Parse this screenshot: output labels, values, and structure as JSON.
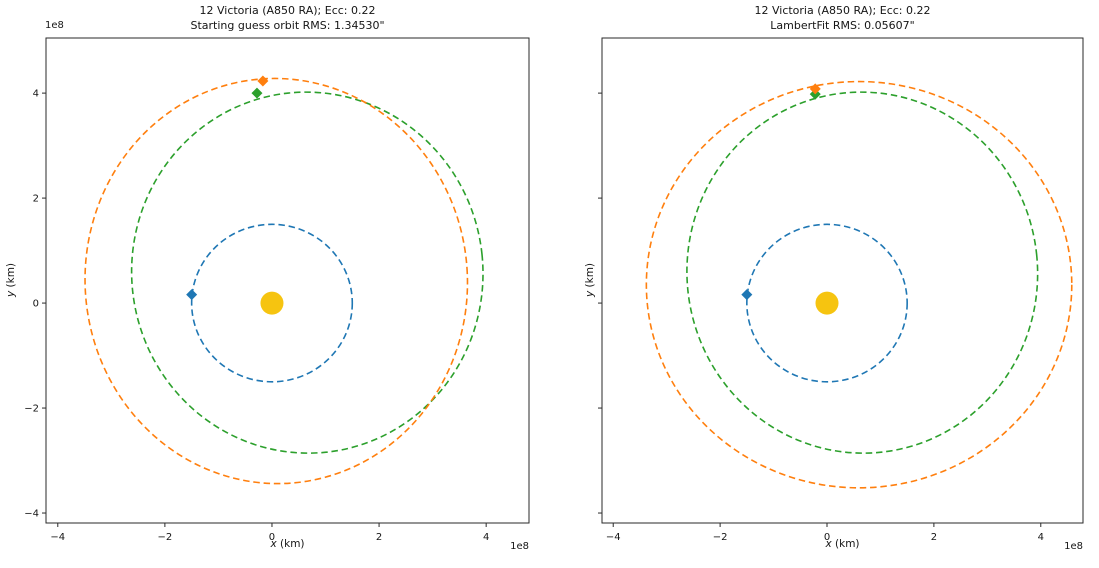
{
  "figure": {
    "background": "#ffffff",
    "text_color": "#151515",
    "spine_color": "#2a2a2a"
  },
  "colors": {
    "earth_orbit_blue": "#1f77b4",
    "fit_orbit_orange": "#ff7f0e",
    "true_orbit_green": "#2ca02c",
    "sun_gold": "#f6c410"
  },
  "chart_data": [
    {
      "type": "line",
      "title_line1": "12 Victoria (A850 RA); Ecc: 0.22",
      "title_line2": "Starting guess orbit RMS: 1.34530\"",
      "xlabel_var": "x",
      "xlabel_unit": " (km)",
      "ylabel_var": "y",
      "ylabel_unit": " (km)",
      "y_offset_text": "1e8",
      "x_offset_text": "1e8",
      "xlim": [
        -4.22,
        4.8
      ],
      "ylim": [
        -4.19,
        5.05
      ],
      "x_ticks": [
        -4,
        -2,
        0,
        2,
        4
      ],
      "y_ticks": [
        -4,
        -2,
        0,
        2,
        4
      ],
      "show_y_tick_labels": true,
      "show_y_offset": true,
      "grid": false,
      "legend": "none",
      "units": "1e8 km",
      "orbits": [
        {
          "name": "earth-orbit",
          "color": "#1f77b4",
          "cx": 0,
          "cy": 0,
          "rx": 1.5,
          "ry": 1.5,
          "rot": 0
        },
        {
          "name": "victoria-true-orbit",
          "color": "#2ca02c",
          "cx": 0.66,
          "cy": 0.58,
          "rx": 3.28,
          "ry": 3.44,
          "rot": -6
        },
        {
          "name": "victoria-guess-orbit",
          "color": "#ff7f0e",
          "cx": 0.08,
          "cy": 0.42,
          "rx": 3.57,
          "ry": 3.86,
          "rot": -4
        }
      ],
      "markers": [
        {
          "name": "earth-position-marker",
          "color": "#1f77b4",
          "x": -1.5,
          "y": 0.16
        },
        {
          "name": "victoria-observed-marker",
          "color": "#2ca02c",
          "x": -0.28,
          "y": 4.0
        },
        {
          "name": "victoria-guess-marker",
          "color": "#ff7f0e",
          "x": -0.17,
          "y": 4.23
        }
      ],
      "sun": {
        "x": 0,
        "y": 0,
        "color": "#f6c410"
      }
    },
    {
      "type": "line",
      "title_line1": "12 Victoria (A850 RA); Ecc: 0.22",
      "title_line2": "LambertFit RMS: 0.05607\"",
      "xlabel_var": "x",
      "xlabel_unit": " (km)",
      "ylabel_var": "y",
      "ylabel_unit": " (km)",
      "x_offset_text": "1e8",
      "xlim": [
        -4.21,
        4.79
      ],
      "ylim": [
        -4.19,
        5.05
      ],
      "x_ticks": [
        -4,
        -2,
        0,
        2,
        4
      ],
      "y_ticks": [
        -4,
        -2,
        0,
        2,
        4
      ],
      "show_y_tick_labels": false,
      "show_y_offset": false,
      "grid": false,
      "legend": "none",
      "units": "1e8 km",
      "orbits": [
        {
          "name": "earth-orbit",
          "color": "#1f77b4",
          "cx": 0,
          "cy": 0,
          "rx": 1.5,
          "ry": 1.5,
          "rot": 0
        },
        {
          "name": "victoria-true-orbit",
          "color": "#2ca02c",
          "cx": 0.66,
          "cy": 0.58,
          "rx": 3.28,
          "ry": 3.44,
          "rot": -6
        },
        {
          "name": "victoria-lambertfit-orbit",
          "color": "#ff7f0e",
          "cx": 0.6,
          "cy": 0.35,
          "rx": 3.98,
          "ry": 3.87,
          "rot": 0
        }
      ],
      "markers": [
        {
          "name": "earth-position-marker",
          "color": "#1f77b4",
          "x": -1.5,
          "y": 0.16
        },
        {
          "name": "victoria-observed-marker",
          "color": "#2ca02c",
          "x": -0.22,
          "y": 3.98
        },
        {
          "name": "victoria-fit-marker",
          "color": "#ff7f0e",
          "x": -0.22,
          "y": 4.08
        }
      ],
      "sun": {
        "x": 0,
        "y": 0,
        "color": "#f6c410"
      }
    }
  ]
}
